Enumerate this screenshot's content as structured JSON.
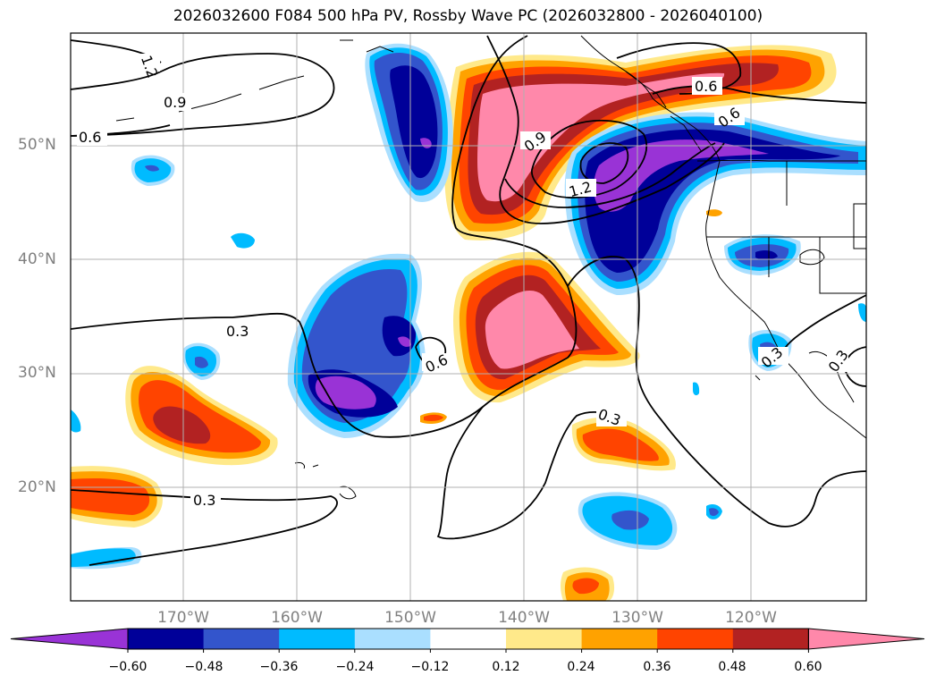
{
  "title": "2026032600 F084 500 hPa PV, Rossby Wave PC (2026032800 - 2026040100)",
  "map": {
    "lat_labels": [
      "50°N",
      "40°N",
      "30°N",
      "20°N"
    ],
    "lon_labels": [
      "170°W",
      "160°W",
      "150°W",
      "140°W",
      "130°W",
      "120°W"
    ],
    "contour_labels": [
      "1.2",
      "0.9",
      "0.6",
      "0.3",
      "0.6",
      "0.9",
      "1.2",
      "0.6",
      "0.6",
      "0.3",
      "0.3",
      "0.3",
      "0.3"
    ]
  },
  "colorbar": {
    "ticks": [
      "−0.60",
      "−0.48",
      "−0.36",
      "−0.24",
      "−0.12",
      "0.12",
      "0.24",
      "0.36",
      "0.48",
      "0.60"
    ],
    "colors": [
      "#9933d6",
      "#000099",
      "#3355cc",
      "#00bbff",
      "#aadfff",
      "#ffffff",
      "#ffe98a",
      "#ffa200",
      "#ff4400",
      "#b22222",
      "#ff88aa"
    ],
    "extend_min_color": "#9933d6",
    "extend_max_color": "#ff88aa"
  }
}
